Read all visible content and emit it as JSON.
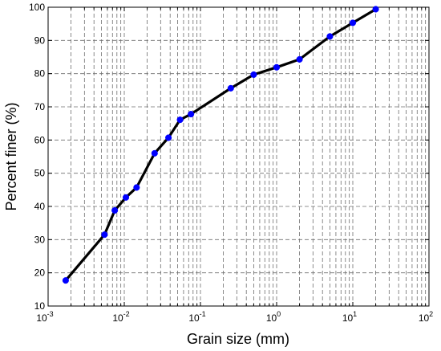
{
  "chart_data": {
    "type": "line",
    "xlabel": "Grain size (mm)",
    "ylabel": "Percent finer (%)",
    "xscale": "log",
    "xlim": [
      0.001,
      100
    ],
    "ylim": [
      10,
      100
    ],
    "grid": true,
    "x_ticks": [
      {
        "base": "10",
        "exp": "-3"
      },
      {
        "base": "10",
        "exp": "-2"
      },
      {
        "base": "10",
        "exp": "-1"
      },
      {
        "base": "10",
        "exp": "0"
      },
      {
        "base": "10",
        "exp": "1"
      },
      {
        "base": "10",
        "exp": "2"
      }
    ],
    "y_ticks": [
      "10",
      "20",
      "30",
      "40",
      "50",
      "60",
      "70",
      "80",
      "90",
      "100"
    ],
    "line_color": "#000000",
    "marker_color": "#0000ff",
    "series": [
      {
        "x": [
          0.0017,
          0.0055,
          0.0075,
          0.0105,
          0.0145,
          0.025,
          0.038,
          0.054,
          0.075,
          0.25,
          0.5,
          1.0,
          2.0,
          5.0,
          10.0,
          20.0
        ],
        "y": [
          17.7,
          31.5,
          38.8,
          42.7,
          45.7,
          56.0,
          60.7,
          66.1,
          67.8,
          75.6,
          79.7,
          81.9,
          84.3,
          91.2,
          95.3,
          99.4
        ]
      }
    ]
  }
}
